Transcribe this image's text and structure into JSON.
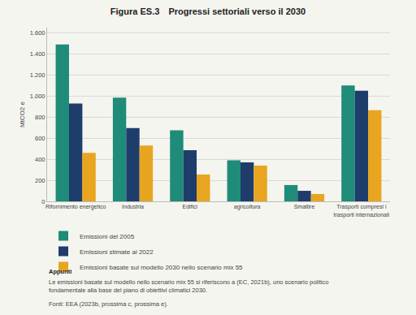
{
  "chart_data": {
    "type": "bar",
    "title": "Figura ES.3",
    "subtitle": "Progressi settoriali verso il 2030",
    "ylabel": "MtCO2 e",
    "categories": [
      "Rifornimento energetico",
      "Industria",
      "Edifici",
      "agricoltura",
      "Smaltire",
      "Trasporti compresi i\ntrasporti internazionali"
    ],
    "series": [
      {
        "name": "Emissioni del 2005",
        "color": "#1e8c78",
        "values": [
          1490,
          985,
          675,
          390,
          155,
          1100
        ]
      },
      {
        "name": "Emissioni stimate al 2022",
        "color": "#1e3d6b",
        "values": [
          930,
          695,
          485,
          370,
          100,
          1050
        ]
      },
      {
        "name": "Emissioni basate sul modello 2030 nello scenario mix 55",
        "color": "#e8a520",
        "values": [
          460,
          530,
          255,
          340,
          70,
          865
        ]
      }
    ],
    "ylim": [
      0,
      1650
    ],
    "yticks": [
      0,
      200,
      400,
      600,
      800,
      {
        "value": 1000,
        "label": "1.000"
      },
      {
        "value": 1200,
        "label": "1.200"
      },
      {
        "value": 1400,
        "label": "1.400"
      },
      {
        "value": 1600,
        "label": "1.600"
      }
    ],
    "grid": true,
    "legend": "bottom",
    "annotations": [
      "Appunti",
      "Le emissioni basate sul modello nello scenario mix 55 si riferiscono a (EC, 2021b), uno scenario politico\nfondamentale alla base del piano di obiettivi climatici 2030.",
      "Fonti: EEA (2023b, prossima c, prossima e)."
    ]
  }
}
